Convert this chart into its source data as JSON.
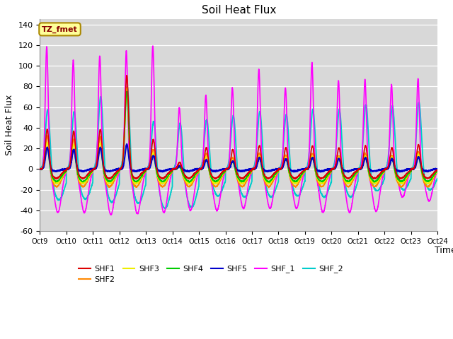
{
  "title": "Soil Heat Flux",
  "ylabel": "Soil Heat Flux",
  "xlabel": "Time",
  "ylim": [
    -60,
    145
  ],
  "yticks": [
    -60,
    -40,
    -20,
    0,
    20,
    40,
    60,
    80,
    100,
    120,
    140
  ],
  "xtick_labels": [
    "Oct 9",
    "Oct 10",
    "Oct 11",
    "Oct 12",
    "Oct 13",
    "Oct 14",
    "Oct 15",
    "Oct 16",
    "Oct 17",
    "Oct 18",
    "Oct 19",
    "Oct 20",
    "Oct 21",
    "Oct 22",
    "Oct 23",
    "Oct 24"
  ],
  "series_colors": {
    "SHF1": "#dd0000",
    "SHF2": "#ff8800",
    "SHF3": "#eeee00",
    "SHF4": "#00cc00",
    "SHF5": "#0000cc",
    "SHF_1": "#ff00ff",
    "SHF_2": "#00cccc"
  },
  "bg_color": "#d8d8d8",
  "box_color": "#ffff99",
  "box_text": "TZ_fmet",
  "box_text_color": "#880000",
  "n_cycles": 15,
  "peak_shf1": [
    40,
    38,
    40,
    92,
    30,
    8,
    22,
    20,
    24,
    22,
    24,
    22,
    24,
    22,
    25
  ],
  "peak_shf2": [
    35,
    32,
    34,
    82,
    22,
    6,
    18,
    14,
    18,
    16,
    18,
    16,
    18,
    16,
    20
  ],
  "peak_shf3": [
    28,
    26,
    28,
    80,
    18,
    5,
    14,
    11,
    15,
    14,
    15,
    14,
    15,
    14,
    17
  ],
  "peak_shf4": [
    23,
    21,
    23,
    77,
    15,
    4,
    11,
    9,
    13,
    12,
    13,
    12,
    13,
    12,
    14
  ],
  "peak_shf5": [
    21,
    19,
    21,
    24,
    13,
    3,
    9,
    8,
    11,
    10,
    11,
    10,
    11,
    10,
    12
  ],
  "peak_shf_1": [
    119,
    106,
    110,
    115,
    120,
    60,
    72,
    79,
    97,
    79,
    103,
    86,
    87,
    82,
    88
  ],
  "peak_shf_2": [
    62,
    60,
    75,
    85,
    52,
    50,
    52,
    56,
    60,
    57,
    62,
    62,
    66,
    64,
    68
  ],
  "trough_shf1": [
    -9,
    -9,
    -9,
    -9,
    -9,
    -9,
    -9,
    -9,
    -9,
    -9,
    -9,
    -9,
    -9,
    -9,
    -9
  ],
  "trough_shf2": [
    -17,
    -17,
    -17,
    -17,
    -17,
    -17,
    -17,
    -17,
    -17,
    -17,
    -17,
    -17,
    -17,
    -17,
    -17
  ],
  "trough_shf3": [
    -14,
    -14,
    -14,
    -14,
    -14,
    -14,
    -14,
    -14,
    -14,
    -14,
    -14,
    -14,
    -14,
    -14,
    -14
  ],
  "trough_shf4": [
    -12,
    -12,
    -12,
    -12,
    -12,
    -12,
    -12,
    -12,
    -12,
    -12,
    -12,
    -12,
    -12,
    -12,
    -12
  ],
  "trough_shf5": [
    -2,
    -2,
    -2,
    -2,
    -2,
    -2,
    -2,
    -2,
    -2,
    -2,
    -2,
    -2,
    -2,
    -2,
    -2
  ],
  "trough_shf_1": [
    -42,
    -42,
    -44,
    -43,
    -42,
    -40,
    -40,
    -38,
    -38,
    -38,
    -42,
    -42,
    -41,
    -27,
    -31
  ],
  "trough_shf_2": [
    -30,
    -29,
    -32,
    -33,
    -38,
    -37,
    -26,
    -27,
    -27,
    -26,
    -27,
    -27,
    -21,
    -20,
    -20
  ]
}
